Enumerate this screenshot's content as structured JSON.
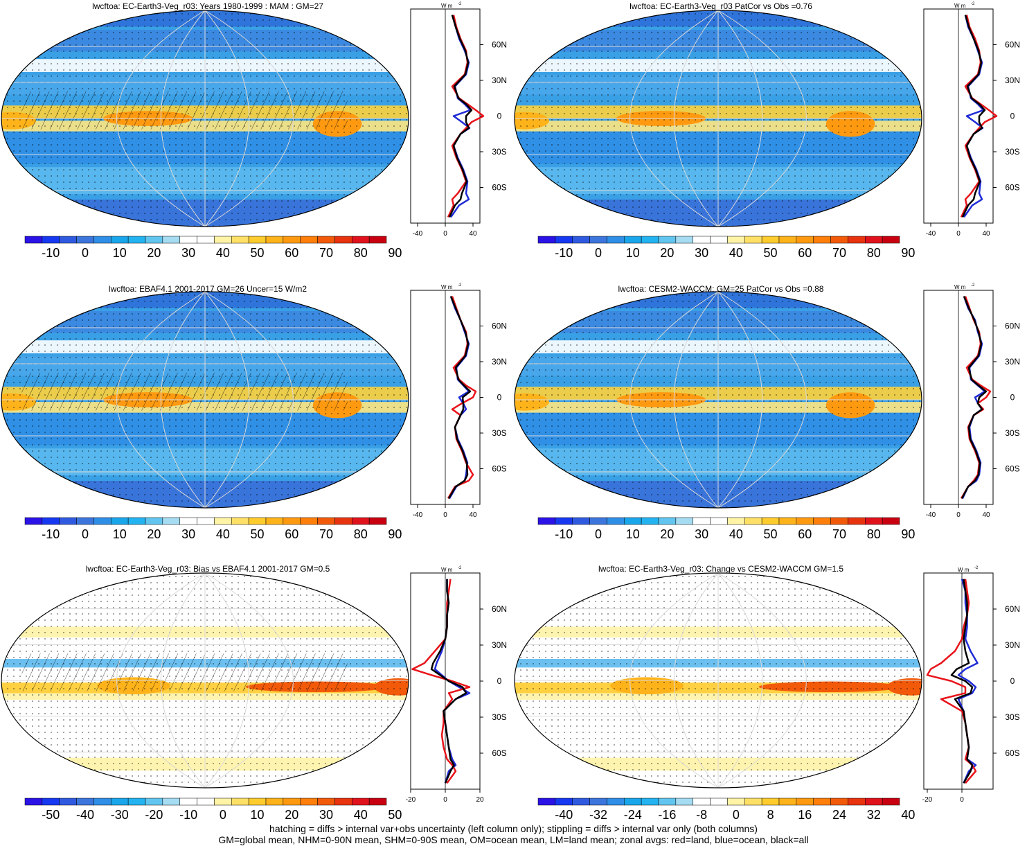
{
  "colors": {
    "ocean": "#1f2bd6",
    "land": "#e8141b",
    "all": "#000000",
    "positive_mean_palette": [
      "#2b12e6",
      "#1638f0",
      "#2f5ae0",
      "#3c75dc",
      "#2f8ee6",
      "#1aa6ea",
      "#23b3f0",
      "#62c5ef",
      "#a6dcf2",
      "#ffffff",
      "#ffffff",
      "#fff3a6",
      "#ffe066",
      "#ffcc2e",
      "#ffb31a",
      "#ff9a10",
      "#ff7f0a",
      "#f25a0a",
      "#e8330f",
      "#e0121b",
      "#c80010"
    ],
    "diff_palette": [
      "#2b12e6",
      "#1638f0",
      "#2f5ae0",
      "#3c75dc",
      "#2f8ee6",
      "#1aa6ea",
      "#23b3f0",
      "#62c5ef",
      "#a6dcf2",
      "#ffffff",
      "#ffffff",
      "#fff3a6",
      "#ffe066",
      "#ffcc2e",
      "#ffb31a",
      "#ff9a10",
      "#ff7f0a",
      "#f25a0a",
      "#e8330f",
      "#e0121b",
      "#c80010"
    ]
  },
  "chart_data": [
    {
      "type": "heatmap",
      "panel": "map",
      "title": "lwcftoa: EC-Earth3-Veg_r03: Years 1980-1999 : MAM : GM=27",
      "colorbar_labels": [
        "-10",
        "0",
        "10",
        "20",
        "30",
        "40",
        "50",
        "60",
        "70",
        "80",
        "90"
      ],
      "zonal": {
        "type": "line",
        "unit_label": "W m",
        "unit_exp": "-2",
        "xlim": [
          -50,
          50
        ],
        "xticks": [
          "-40",
          "0",
          "40"
        ],
        "yticks": [
          "60N",
          "30N",
          "0",
          "30S",
          "60S"
        ],
        "ylim": [
          -90,
          90
        ],
        "lat": [
          85,
          75,
          65,
          55,
          45,
          35,
          25,
          15,
          10,
          5,
          0,
          -5,
          -10,
          -15,
          -25,
          -35,
          -45,
          -55,
          -65,
          -70,
          -75,
          -85
        ],
        "series": [
          {
            "key": "ocean",
            "values": [
              10,
              15,
              20,
              28,
              34,
              30,
              14,
              18,
              28,
              36,
              12,
              24,
              35,
              22,
              12,
              18,
              26,
              32,
              30,
              34,
              20,
              8
            ]
          },
          {
            "key": "land",
            "values": [
              12,
              16,
              22,
              30,
              32,
              28,
              10,
              20,
              32,
              44,
              55,
              38,
              30,
              22,
              10,
              16,
              24,
              30,
              18,
              10,
              12,
              4
            ]
          },
          {
            "key": "all",
            "values": [
              10,
              15,
              21,
              29,
              33,
              29,
              13,
              19,
              30,
              38,
              30,
              30,
              34,
              22,
              12,
              17,
              25,
              31,
              24,
              22,
              14,
              6
            ]
          }
        ]
      }
    },
    {
      "type": "heatmap",
      "panel": "map",
      "title": "lwcftoa: EC-Earth3-Veg_r03 PatCor vs Obs =0.76",
      "colorbar_labels": [
        "-10",
        "0",
        "10",
        "20",
        "30",
        "40",
        "50",
        "60",
        "70",
        "80",
        "90"
      ],
      "zonal": {
        "type": "line",
        "unit_label": "W m",
        "unit_exp": "-2",
        "xlim": [
          -50,
          50
        ],
        "xticks": [
          "-40",
          "0",
          "40"
        ],
        "yticks": [
          "60N",
          "30N",
          "0",
          "30S",
          "60S"
        ],
        "ylim": [
          -90,
          90
        ],
        "lat": [
          85,
          75,
          65,
          55,
          45,
          35,
          25,
          15,
          10,
          5,
          0,
          -5,
          -10,
          -15,
          -25,
          -35,
          -45,
          -55,
          -65,
          -70,
          -75,
          -85
        ],
        "series": [
          {
            "key": "ocean",
            "values": [
              10,
              14,
              22,
              28,
              34,
              30,
              14,
              18,
              28,
              36,
              12,
              24,
              35,
              22,
              12,
              18,
              26,
              32,
              30,
              34,
              20,
              8
            ]
          },
          {
            "key": "land",
            "values": [
              12,
              16,
              24,
              30,
              32,
              28,
              10,
              20,
              32,
              44,
              55,
              38,
              30,
              22,
              10,
              16,
              24,
              30,
              18,
              10,
              12,
              4
            ]
          },
          {
            "key": "all",
            "values": [
              10,
              15,
              22,
              29,
              33,
              29,
              13,
              19,
              30,
              38,
              30,
              30,
              34,
              22,
              12,
              17,
              25,
              31,
              24,
              22,
              14,
              6
            ]
          }
        ]
      }
    },
    {
      "type": "heatmap",
      "panel": "map",
      "title": "lwcftoa: EBAF4.1 2001-2017 GM=26 Uncer=15 W/m2",
      "colorbar_labels": [
        "-10",
        "0",
        "10",
        "20",
        "30",
        "40",
        "50",
        "60",
        "70",
        "80",
        "90"
      ],
      "zonal": {
        "type": "line",
        "unit_label": "W m",
        "unit_exp": "-2",
        "xlim": [
          -50,
          50
        ],
        "xticks": [
          "-40",
          "0",
          "40"
        ],
        "yticks": [
          "60N",
          "30N",
          "0",
          "30S",
          "60S"
        ],
        "ylim": [
          -90,
          90
        ],
        "lat": [
          85,
          75,
          65,
          55,
          45,
          35,
          25,
          15,
          10,
          5,
          0,
          -5,
          -10,
          -15,
          -25,
          -35,
          -45,
          -55,
          -65,
          -70,
          -75,
          -85
        ],
        "series": [
          {
            "key": "ocean",
            "values": [
              8,
              14,
              22,
              28,
              34,
              30,
              16,
              18,
              26,
              34,
              20,
              26,
              30,
              22,
              14,
              18,
              26,
              32,
              30,
              28,
              16,
              6
            ]
          },
          {
            "key": "land",
            "values": [
              10,
              16,
              22,
              30,
              32,
              28,
              12,
              20,
              30,
              44,
              40,
              24,
              10,
              22,
              14,
              16,
              24,
              30,
              40,
              34,
              14,
              4
            ]
          },
          {
            "key": "all",
            "values": [
              8,
              15,
              22,
              29,
              33,
              29,
              15,
              19,
              27,
              36,
              25,
              26,
              26,
              22,
              14,
              17,
              25,
              31,
              32,
              28,
              15,
              5
            ]
          }
        ]
      }
    },
    {
      "type": "heatmap",
      "panel": "map",
      "title": "lwcftoa: CESM2-WACCM: GM=25 PatCor vs Obs =0.88",
      "colorbar_labels": [
        "-10",
        "0",
        "10",
        "20",
        "30",
        "40",
        "50",
        "60",
        "70",
        "80",
        "90"
      ],
      "zonal": {
        "type": "line",
        "unit_label": "W m",
        "unit_exp": "-2",
        "xlim": [
          -50,
          50
        ],
        "xticks": [
          "-40",
          "0",
          "40"
        ],
        "yticks": [
          "60N",
          "30N",
          "0",
          "30S",
          "60S"
        ],
        "ylim": [
          -90,
          90
        ],
        "lat": [
          85,
          75,
          65,
          55,
          45,
          35,
          25,
          15,
          10,
          5,
          0,
          -5,
          -10,
          -15,
          -25,
          -35,
          -45,
          -55,
          -65,
          -70,
          -75,
          -85
        ],
        "series": [
          {
            "key": "ocean",
            "values": [
              8,
              14,
              24,
              28,
              34,
              30,
              16,
              18,
              28,
              38,
              24,
              28,
              34,
              22,
              16,
              18,
              26,
              32,
              30,
              26,
              14,
              6
            ]
          },
          {
            "key": "land",
            "values": [
              10,
              16,
              22,
              30,
              32,
              28,
              12,
              20,
              32,
              46,
              40,
              28,
              36,
              22,
              14,
              16,
              24,
              30,
              28,
              22,
              14,
              4
            ]
          },
          {
            "key": "all",
            "values": [
              8,
              15,
              23,
              29,
              33,
              29,
              15,
              19,
              29,
              40,
              30,
              28,
              34,
              22,
              15,
              17,
              25,
              31,
              29,
              24,
              14,
              5
            ]
          }
        ]
      }
    },
    {
      "type": "heatmap",
      "panel": "map",
      "title": "lwcftoa: EC-Earth3-Veg_r03: Bias vs EBAF4.1 2001-2017 GM=0.5",
      "colorbar_labels": [
        "-50",
        "-40",
        "-30",
        "-20",
        "-10",
        "0",
        "10",
        "20",
        "30",
        "40",
        "50"
      ],
      "zonal": {
        "type": "line",
        "unit_label": "W m",
        "unit_exp": "-2",
        "xlim": [
          -20,
          20
        ],
        "xticks": [
          "-20",
          "0",
          "20"
        ],
        "yticks": [
          "60N",
          "30N",
          "0",
          "30S",
          "60S"
        ],
        "ylim": [
          -90,
          90
        ],
        "lat": [
          85,
          75,
          65,
          55,
          45,
          35,
          25,
          15,
          10,
          5,
          0,
          -5,
          -10,
          -15,
          -25,
          -35,
          -45,
          -55,
          -65,
          -70,
          -75,
          -85
        ],
        "series": [
          {
            "key": "ocean",
            "values": [
              1,
              1,
              2,
              1,
              1,
              0,
              -2,
              -5,
              -6,
              -2,
              2,
              8,
              14,
              6,
              -1,
              0,
              1,
              2,
              4,
              6,
              2,
              0
            ]
          },
          {
            "key": "land",
            "values": [
              3,
              2,
              1,
              1,
              1,
              0,
              -6,
              -12,
              -19,
              -8,
              4,
              14,
              2,
              4,
              -1,
              -1,
              -2,
              -1,
              1,
              4,
              6,
              1
            ]
          },
          {
            "key": "all",
            "values": [
              1,
              1,
              2,
              1,
              1,
              0,
              -3,
              -7,
              -8,
              -3,
              2,
              10,
              12,
              6,
              -1,
              0,
              1,
              2,
              3,
              5,
              3,
              0
            ]
          }
        ]
      }
    },
    {
      "type": "heatmap",
      "panel": "map",
      "title": "lwcftoa: EC-Earth3-Veg_r03: Change vs CESM2-WACCM GM=1.5",
      "colorbar_labels": [
        "-40",
        "-32",
        "-24",
        "-16",
        "-8",
        "0",
        "8",
        "16",
        "24",
        "32",
        "40"
      ],
      "zonal": {
        "type": "line",
        "unit_label": "W m",
        "unit_exp": "-2",
        "xlim": [
          -22,
          18
        ],
        "xticks": [
          "-20",
          "0"
        ],
        "yticks": [
          "60N",
          "30N",
          "0",
          "30S",
          "60S"
        ],
        "ylim": [
          -90,
          90
        ],
        "lat": [
          85,
          75,
          65,
          55,
          45,
          35,
          25,
          15,
          10,
          5,
          0,
          -5,
          -10,
          -15,
          -25,
          -35,
          -45,
          -55,
          -65,
          -70,
          -75,
          -85
        ],
        "series": [
          {
            "key": "ocean",
            "values": [
              0,
              2,
              2,
              3,
              3,
              2,
              5,
              9,
              2,
              -2,
              4,
              8,
              6,
              -2,
              1,
              2,
              3,
              4,
              3,
              8,
              4,
              1
            ]
          },
          {
            "key": "land",
            "values": [
              2,
              3,
              4,
              3,
              1,
              0,
              -4,
              -12,
              -18,
              -20,
              -6,
              2,
              2,
              -12,
              0,
              2,
              3,
              4,
              2,
              6,
              8,
              2
            ]
          },
          {
            "key": "all",
            "values": [
              1,
              2,
              3,
              3,
              2,
              1,
              2,
              4,
              -3,
              -6,
              2,
              6,
              5,
              -4,
              1,
              2,
              3,
              4,
              3,
              6,
              5,
              1
            ]
          }
        ]
      }
    }
  ],
  "footer": {
    "line1": "hatching = diffs > internal var+obs uncertainty (left column only); stippling = diffs > internal var only (both columns)",
    "line2": "GM=global mean, NHM=0-90N mean, SHM=0-90S mean, OM=ocean mean, LM=land mean; zonal avgs: red=land, blue=ocean, black=all"
  }
}
